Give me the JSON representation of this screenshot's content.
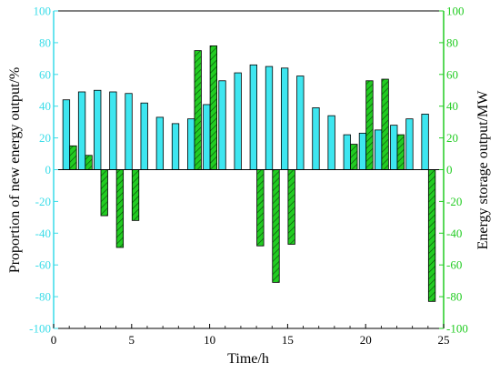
{
  "chart_data": {
    "type": "bar",
    "xlabel": "Time/h",
    "ylabel_left": "Proportion of new energy output/%",
    "ylabel_right": "Energy storage output/MW",
    "xlim": [
      0,
      25
    ],
    "ylim": [
      -100,
      100
    ],
    "xticks": [
      0,
      5,
      10,
      15,
      20,
      25
    ],
    "yticks": [
      -100,
      -80,
      -60,
      -40,
      -20,
      0,
      20,
      40,
      60,
      80,
      100
    ],
    "grid": false,
    "legend": "none",
    "x": [
      1,
      2,
      3,
      4,
      5,
      6,
      7,
      8,
      9,
      10,
      11,
      12,
      13,
      14,
      15,
      16,
      17,
      18,
      19,
      20,
      21,
      22,
      23,
      24
    ],
    "series": [
      {
        "axis": "left",
        "color": "#3EE6F0",
        "values": [
          44,
          49,
          50,
          49,
          48,
          42,
          33,
          29,
          32,
          41,
          56,
          61,
          66,
          65,
          64,
          59,
          39,
          34,
          22,
          23,
          25,
          28,
          32,
          35
        ]
      },
      {
        "axis": "right",
        "color": "#22CC22",
        "hatch": true,
        "values": [
          15,
          9,
          -29,
          -49,
          -32,
          0,
          0,
          0,
          75,
          78,
          0,
          0,
          -48,
          -71,
          -47,
          0,
          0,
          0,
          16,
          56,
          57,
          22,
          0,
          -83
        ]
      }
    ],
    "colors": {
      "left_axis": "#38DCE8",
      "right_axis": "#22CC22",
      "frame": "#000000"
    }
  }
}
